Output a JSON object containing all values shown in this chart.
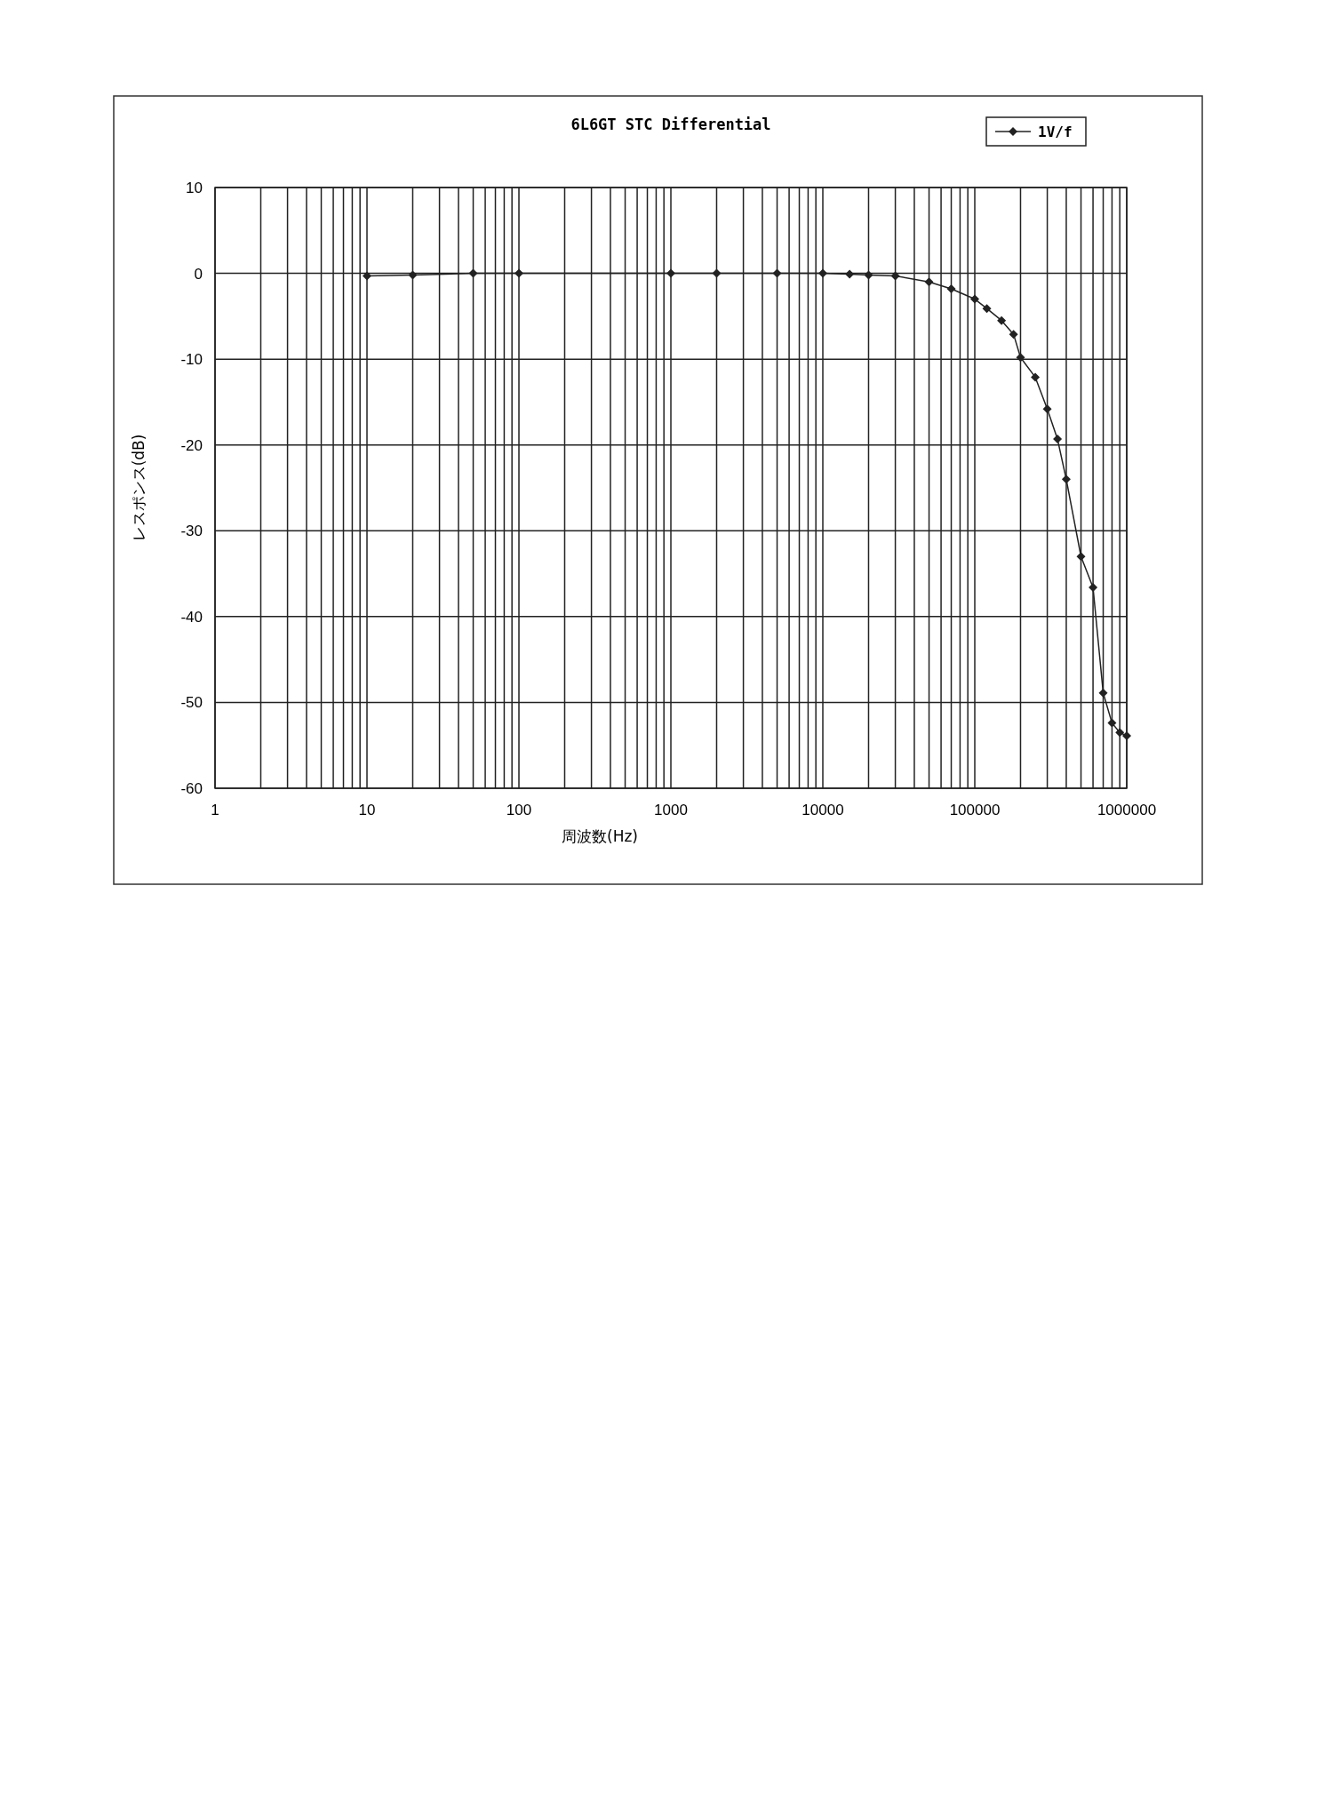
{
  "chart_data": {
    "type": "line",
    "title": "6L6GT STC Differential",
    "xlabel": "周波数(Hz)",
    "ylabel": "レスポンス(dB)",
    "x": [
      10,
      20,
      50,
      100,
      1000,
      2000,
      5000,
      10000,
      15000,
      20000,
      30000,
      50000,
      70000,
      100000,
      120000,
      150000,
      180000,
      200000,
      250000,
      300000,
      350000,
      400000,
      500000,
      600000,
      700000,
      800000,
      900000,
      1000000
    ],
    "series": [
      {
        "name": "1V/f",
        "color": "#222222",
        "values": [
          -0.3,
          -0.2,
          0,
          0,
          0,
          0,
          0,
          0,
          -0.1,
          -0.2,
          -0.3,
          -1.0,
          -1.8,
          -3.0,
          -4.1,
          -5.5,
          -7.1,
          -9.8,
          -12.1,
          -15.8,
          -19.3,
          -24.0,
          -33.0,
          -36.6,
          -48.9,
          -52.4,
          -53.5,
          -53.9
        ]
      }
    ],
    "xlim": [
      1,
      1000000
    ],
    "xticks": [
      1,
      10,
      100,
      1000,
      10000,
      100000,
      1000000
    ],
    "ylim": [
      -60,
      10
    ],
    "yticks": [
      -60,
      -50,
      -40,
      -30,
      -20,
      -10,
      0,
      10
    ],
    "log": "x",
    "grid": true,
    "legend": "top right",
    "marker": "diamond",
    "line_style": "solid"
  }
}
